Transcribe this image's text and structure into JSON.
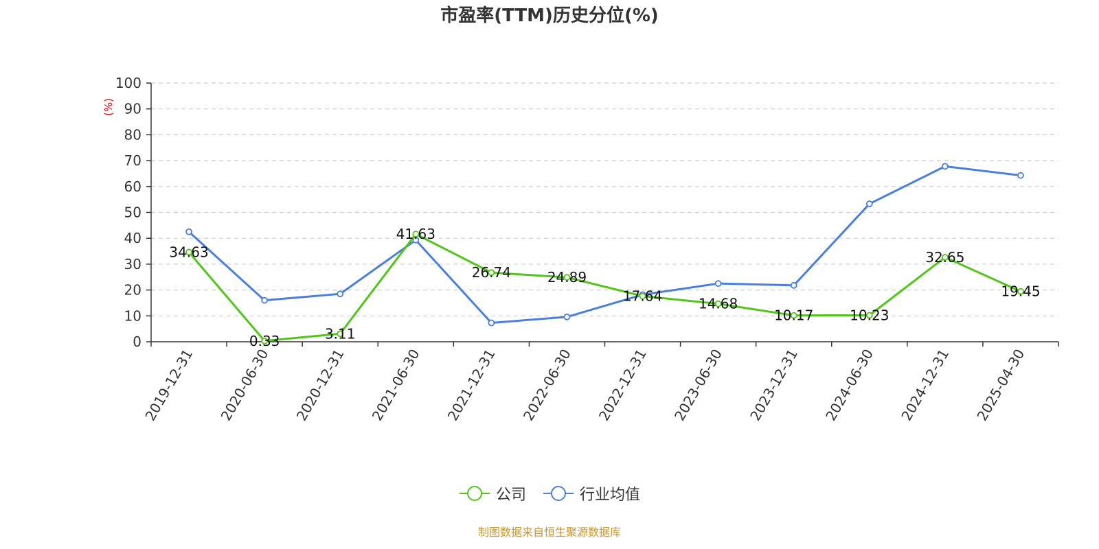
{
  "chart_data": {
    "type": "line",
    "title": "市盈率(TTM)历史分位(%)",
    "ylabel": "(%)",
    "ylim": [
      0,
      100
    ],
    "yticks": [
      0,
      10,
      20,
      30,
      40,
      50,
      60,
      70,
      80,
      90,
      100
    ],
    "grid": true,
    "legend_position": "bottom-center",
    "categories": [
      "2019-12-31",
      "2020-06-30",
      "2020-12-31",
      "2021-06-30",
      "2021-12-31",
      "2022-06-30",
      "2022-12-31",
      "2023-06-30",
      "2023-12-31",
      "2024-06-30",
      "2024-12-31",
      "2025-04-30"
    ],
    "series": [
      {
        "name": "公司",
        "color": "#52c41a",
        "values": [
          34.63,
          0.33,
          3.11,
          41.63,
          26.74,
          24.89,
          17.64,
          14.68,
          10.17,
          10.23,
          32.65,
          19.45
        ],
        "labels": [
          "34.63",
          "0.33",
          "3.11",
          "41.63",
          "26.74",
          "24.89",
          "17.64",
          "14.68",
          "10.17",
          "10.23",
          "32.65",
          "19.45"
        ]
      },
      {
        "name": "行业均值",
        "color": "#4a7fdd",
        "values": [
          42.5,
          16,
          18.5,
          39.3,
          7.3,
          9.6,
          18.2,
          22.5,
          21.8,
          53.3,
          67.8,
          64.3
        ]
      }
    ]
  },
  "source_note": "制图数据来自恒生聚源数据库"
}
